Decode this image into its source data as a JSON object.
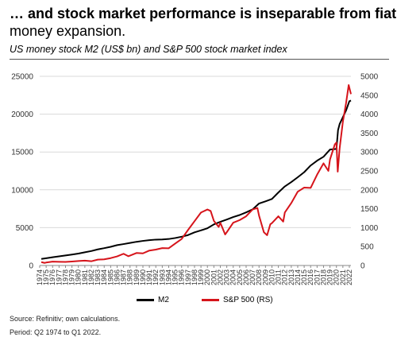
{
  "header": {
    "title_line1": "… and stock market performance is inseparable from fiat",
    "title_line2": "money expansion.",
    "subtitle": "US money stock M2 (US$ bn) and S&P 500 stock market index"
  },
  "footer": {
    "source": "Source: Refinitiv; own calculations.",
    "period": "Period: Q2 1974 to Q1 2022."
  },
  "colors": {
    "m2": "#000000",
    "sp500": "#d6141b",
    "gridline": "#d9d9d9"
  },
  "chart_data": {
    "type": "line",
    "title": "US money stock M2 (US$ bn) and S&P 500 stock market index",
    "xlim": [
      1974,
      2022.25
    ],
    "ylim_left": [
      0,
      25000
    ],
    "ylim_right": [
      0,
      5000
    ],
    "left_ticks": [
      "0",
      "5000",
      "10000",
      "15000",
      "20000",
      "25000"
    ],
    "left_tick_values": [
      0,
      5000,
      10000,
      15000,
      20000,
      25000
    ],
    "right_ticks": [
      "0",
      "500",
      "1000",
      "1500",
      "2000",
      "2500",
      "3000",
      "3500",
      "4000",
      "4500",
      "5000"
    ],
    "right_tick_values": [
      0,
      500,
      1000,
      1500,
      2000,
      2500,
      3000,
      3500,
      4000,
      4500,
      5000
    ],
    "x_ticks": [
      "1974",
      "1975",
      "1976",
      "1977",
      "1978",
      "1979",
      "1980",
      "1981",
      "1982",
      "1983",
      "1984",
      "1985",
      "1986",
      "1987",
      "1988",
      "1989",
      "1990",
      "1991",
      "1992",
      "1993",
      "1994",
      "1995",
      "1996",
      "1997",
      "1998",
      "1999",
      "2000",
      "2001",
      "2002",
      "2003",
      "2004",
      "2005",
      "2006",
      "2007",
      "2008",
      "2009",
      "2010",
      "2011",
      "2012",
      "2013",
      "2014",
      "2015",
      "2016",
      "2017",
      "2018",
      "2019",
      "2020",
      "2021",
      "2022"
    ],
    "grid": "horizontal",
    "legend_position": "bottom-center",
    "series": [
      {
        "name": "M2",
        "axis": "left",
        "points": [
          [
            1974.25,
            870
          ],
          [
            1975,
            960
          ],
          [
            1976,
            1090
          ],
          [
            1977,
            1210
          ],
          [
            1978,
            1330
          ],
          [
            1979,
            1450
          ],
          [
            1980,
            1580
          ],
          [
            1981,
            1750
          ],
          [
            1982,
            1910
          ],
          [
            1983,
            2130
          ],
          [
            1984,
            2290
          ],
          [
            1985,
            2470
          ],
          [
            1986,
            2690
          ],
          [
            1987,
            2830
          ],
          [
            1988,
            2980
          ],
          [
            1989,
            3130
          ],
          [
            1990,
            3250
          ],
          [
            1991,
            3350
          ],
          [
            1992,
            3420
          ],
          [
            1993,
            3440
          ],
          [
            1994,
            3500
          ],
          [
            1995,
            3630
          ],
          [
            1996,
            3800
          ],
          [
            1997,
            4020
          ],
          [
            1998,
            4380
          ],
          [
            1999,
            4640
          ],
          [
            2000,
            4920
          ],
          [
            2001,
            5430
          ],
          [
            2002,
            5770
          ],
          [
            2003,
            6070
          ],
          [
            2004,
            6400
          ],
          [
            2005,
            6670
          ],
          [
            2006,
            7020
          ],
          [
            2007,
            7410
          ],
          [
            2008,
            8190
          ],
          [
            2009,
            8480
          ],
          [
            2010,
            8790
          ],
          [
            2011,
            9650
          ],
          [
            2012,
            10450
          ],
          [
            2013,
            11020
          ],
          [
            2014,
            11660
          ],
          [
            2015,
            12330
          ],
          [
            2016,
            13210
          ],
          [
            2017,
            13850
          ],
          [
            2018,
            14370
          ],
          [
            2019,
            15320
          ],
          [
            2020.0,
            15400
          ],
          [
            2020.25,
            17900
          ],
          [
            2020.5,
            18700
          ],
          [
            2021,
            19600
          ],
          [
            2021.5,
            20500
          ],
          [
            2022,
            21700
          ],
          [
            2022.25,
            21800
          ]
        ]
      },
      {
        "name": "S&P 500 (RS)",
        "axis": "right",
        "points": [
          [
            1974.25,
            90
          ],
          [
            1974.75,
            68
          ],
          [
            1975,
            78
          ],
          [
            1976,
            103
          ],
          [
            1977,
            98
          ],
          [
            1978,
            94
          ],
          [
            1979,
            104
          ],
          [
            1980,
            117
          ],
          [
            1981,
            128
          ],
          [
            1982,
            112
          ],
          [
            1983,
            155
          ],
          [
            1984,
            162
          ],
          [
            1985,
            195
          ],
          [
            1986,
            240
          ],
          [
            1987,
            310
          ],
          [
            1987.75,
            245
          ],
          [
            1988,
            262
          ],
          [
            1989,
            330
          ],
          [
            1990,
            320
          ],
          [
            1991,
            395
          ],
          [
            1992,
            420
          ],
          [
            1993,
            460
          ],
          [
            1994,
            455
          ],
          [
            1995,
            580
          ],
          [
            1996,
            700
          ],
          [
            1997,
            940
          ],
          [
            1998,
            1170
          ],
          [
            1999,
            1400
          ],
          [
            2000,
            1480
          ],
          [
            2000.5,
            1440
          ],
          [
            2001,
            1180
          ],
          [
            2001.75,
            1020
          ],
          [
            2002,
            1130
          ],
          [
            2002.75,
            820
          ],
          [
            2003,
            880
          ],
          [
            2004,
            1130
          ],
          [
            2005,
            1200
          ],
          [
            2006,
            1300
          ],
          [
            2007,
            1480
          ],
          [
            2007.75,
            1520
          ],
          [
            2008,
            1320
          ],
          [
            2008.75,
            880
          ],
          [
            2009.25,
            800
          ],
          [
            2009.75,
            1090
          ],
          [
            2010,
            1120
          ],
          [
            2011,
            1300
          ],
          [
            2011.75,
            1160
          ],
          [
            2012,
            1400
          ],
          [
            2013,
            1650
          ],
          [
            2014,
            1950
          ],
          [
            2015,
            2060
          ],
          [
            2016,
            2050
          ],
          [
            2017,
            2400
          ],
          [
            2018,
            2700
          ],
          [
            2018.75,
            2500
          ],
          [
            2019,
            2800
          ],
          [
            2019.75,
            3200
          ],
          [
            2020.0,
            3250
          ],
          [
            2020.2,
            2480
          ],
          [
            2020.5,
            3100
          ],
          [
            2021,
            3800
          ],
          [
            2021.5,
            4300
          ],
          [
            2021.9,
            4770
          ],
          [
            2022.25,
            4530
          ]
        ]
      }
    ]
  },
  "legend": {
    "m2_label": "M2",
    "sp500_label": "S&P 500 (RS)"
  }
}
